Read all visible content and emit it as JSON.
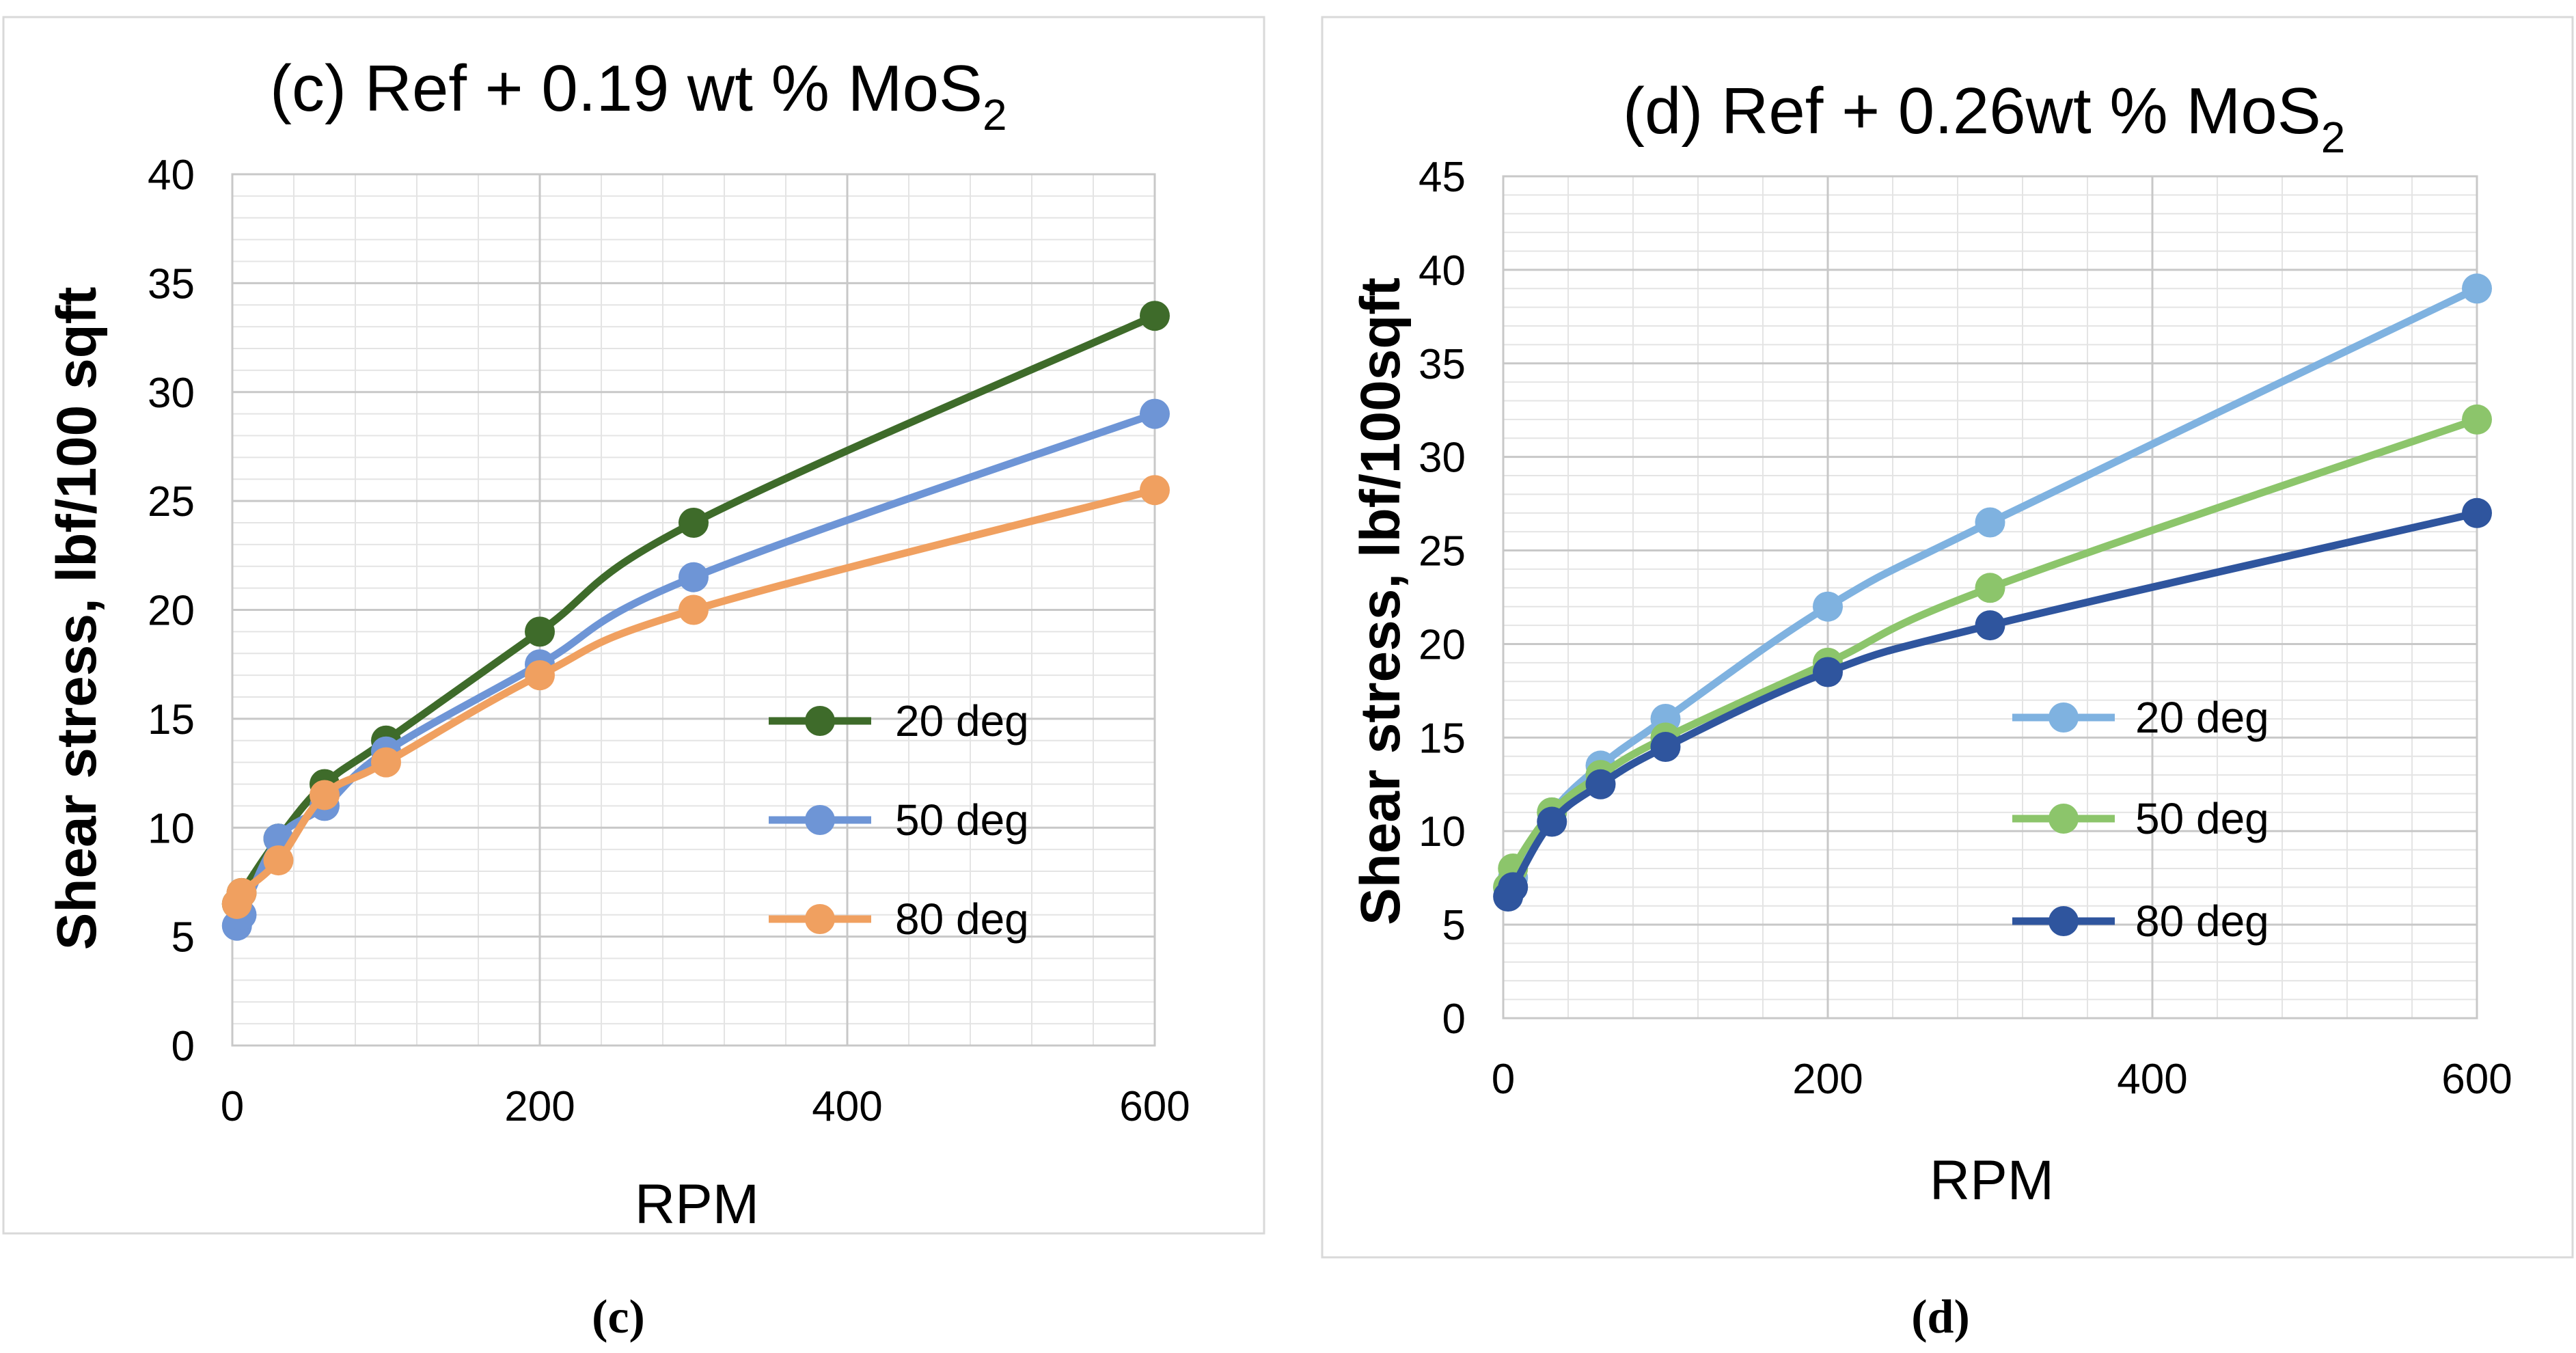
{
  "chart_data": [
    {
      "type": "line",
      "panel": "c",
      "title_main": "(c) Ref  + 0.19 wt % MoS",
      "title_sub": "2",
      "xlabel": "RPM",
      "ylabel": "Shear stress, lbf/100 sqft",
      "xlim": [
        0,
        600
      ],
      "ylim": [
        0,
        40
      ],
      "xticks": [
        "0",
        "200",
        "400",
        "600"
      ],
      "yticks": [
        "0",
        "5",
        "10",
        "15",
        "20",
        "25",
        "30",
        "35",
        "40"
      ],
      "caption": "(c)",
      "x": [
        3,
        6,
        30,
        60,
        100,
        200,
        300,
        600
      ],
      "series": [
        {
          "name": "20 deg",
          "color": "#3E6B2A",
          "values": [
            6.5,
            7,
            9.5,
            12,
            14,
            19,
            24,
            33.5
          ]
        },
        {
          "name": "50 deg",
          "color": "#6E95D6",
          "values": [
            5.5,
            6,
            9.5,
            11,
            13.5,
            17.5,
            21.5,
            29
          ]
        },
        {
          "name": "80 deg",
          "color": "#F0A060",
          "values": [
            6.5,
            7,
            8.5,
            11.5,
            13,
            17,
            20,
            25.5
          ]
        }
      ]
    },
    {
      "type": "line",
      "panel": "d",
      "title_main": "(d) Ref + 0.26wt % MoS",
      "title_sub": "2",
      "xlabel": "RPM",
      "ylabel": "Shear stress, lbf/100sqft",
      "xlim": [
        0,
        600
      ],
      "ylim": [
        0,
        45
      ],
      "xticks": [
        "0",
        "200",
        "400",
        "600"
      ],
      "yticks": [
        "0",
        "5",
        "10",
        "15",
        "20",
        "25",
        "30",
        "35",
        "40",
        "45"
      ],
      "caption": "(d)",
      "x": [
        3,
        6,
        30,
        60,
        100,
        200,
        300,
        600
      ],
      "series": [
        {
          "name": "20 deg",
          "color": "#7FB2E0",
          "values": [
            7,
            7.5,
            11,
            13.5,
            16,
            22,
            26.5,
            39
          ]
        },
        {
          "name": "50 deg",
          "color": "#8CC56B",
          "values": [
            7,
            8,
            11,
            13,
            15,
            19,
            23,
            32
          ]
        },
        {
          "name": "80 deg",
          "color": "#2F559E",
          "values": [
            6.5,
            7,
            10.5,
            12.5,
            14.5,
            18.5,
            21,
            27
          ]
        }
      ]
    }
  ]
}
